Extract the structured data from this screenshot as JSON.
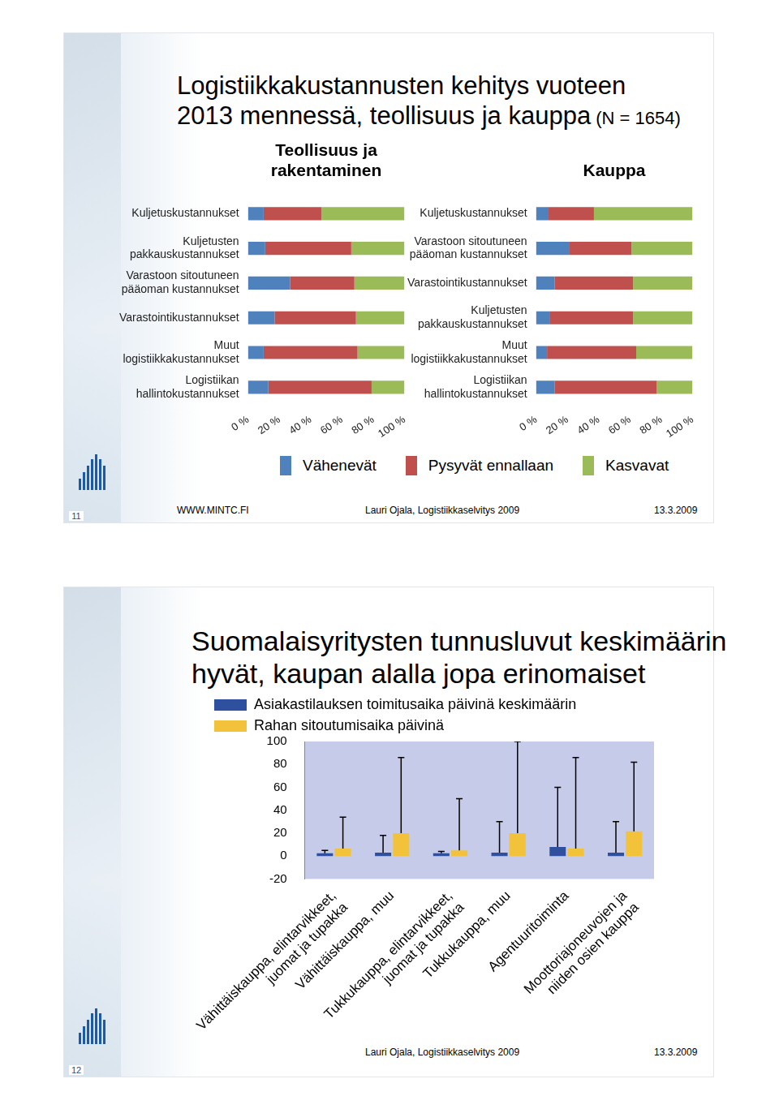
{
  "slides": [
    {
      "page": "11",
      "title_lines": [
        "Logistiikkakustannusten kehitys vuoteen",
        "2013 mennessä, teollisuus ja kauppa"
      ],
      "title_note": "(N = 1654)",
      "footer": {
        "left": "WWW.MINTC.FI",
        "center": "Lauri Ojala, Logistiikkaselvitys 2009",
        "right": "13.3.2009"
      }
    },
    {
      "page": "12",
      "title_lines": [
        "Suomalaisyritysten tunnusluvut keskimäärin",
        "hyvät, kaupan alalla jopa erinomaiset"
      ],
      "footer": {
        "center": "Lauri Ojala, Logistiikkaselvitys 2009",
        "right": "13.3.2009"
      }
    }
  ],
  "chart_data": [
    {
      "type": "bar",
      "title": [
        "Teollisuus ja",
        "rakentaminen"
      ],
      "orientation": "horizontal",
      "stacked": true,
      "grid": false,
      "categories": [
        [
          "Kuljetuskustannukset"
        ],
        [
          "Kuljetusten",
          "pakkauskustannukset"
        ],
        [
          "Varastoon sitoutuneen",
          "pääoman kustannukset"
        ],
        [
          "Varastointikustannukset"
        ],
        [
          "Muut",
          "logistiikkakustannukset"
        ],
        [
          "Logistiikan",
          "hallintokustannukset"
        ]
      ],
      "series": [
        {
          "name": "Vähenevät",
          "color": "#4f81bd",
          "values": [
            10,
            11,
            27,
            17,
            10,
            13
          ]
        },
        {
          "name": "Pysyvät ennallaan",
          "color": "#c0504d",
          "values": [
            37,
            55,
            41,
            52,
            60,
            66
          ]
        },
        {
          "name": "Kasvavat",
          "color": "#9bbb59",
          "values": [
            53,
            34,
            32,
            31,
            30,
            21
          ]
        }
      ],
      "xlim": [
        0,
        100
      ],
      "xticks": [
        {
          "value": 0,
          "label": "0 %"
        },
        {
          "value": 20,
          "label": "20 %"
        },
        {
          "value": 40,
          "label": "40 %"
        },
        {
          "value": 60,
          "label": "60 %"
        },
        {
          "value": 80,
          "label": "80 %"
        },
        {
          "value": 100,
          "label": "100 %"
        }
      ]
    },
    {
      "type": "bar",
      "title": [
        "Kauppa"
      ],
      "orientation": "horizontal",
      "stacked": true,
      "grid": false,
      "categories": [
        [
          "Kuljetuskustannukset"
        ],
        [
          "Varastoon sitoutuneen",
          "pääoman kustannukset"
        ],
        [
          "Varastointikustannukset"
        ],
        [
          "Kuljetusten",
          "pakkauskustannukset"
        ],
        [
          "Muut",
          "logistiikkakustannukset"
        ],
        [
          "Logistiikan",
          "hallintokustannukset"
        ]
      ],
      "series": [
        {
          "name": "Vähenevät",
          "color": "#4f81bd",
          "values": [
            8,
            21,
            12,
            9,
            7,
            12
          ]
        },
        {
          "name": "Pysyvät ennallaan",
          "color": "#c0504d",
          "values": [
            29,
            40,
            50,
            53,
            57,
            65
          ]
        },
        {
          "name": "Kasvavat",
          "color": "#9bbb59",
          "values": [
            63,
            39,
            38,
            38,
            36,
            23
          ]
        }
      ],
      "xlim": [
        0,
        100
      ],
      "xticks": [
        {
          "value": 0,
          "label": "0 %"
        },
        {
          "value": 20,
          "label": "20 %"
        },
        {
          "value": 40,
          "label": "40 %"
        },
        {
          "value": 60,
          "label": "60 %"
        },
        {
          "value": 80,
          "label": "80 %"
        },
        {
          "value": 100,
          "label": "100 %"
        }
      ]
    },
    {
      "type": "bar",
      "grid": false,
      "legend": "top",
      "categories": [
        [
          "Vähittäiskauppa, elintarvikkeet,",
          "juomat ja tupakka"
        ],
        [
          "Vähittäiskauppa, muu"
        ],
        [
          "Tukkukauppa, elintarvikkeet,",
          "juomat ja tupakka"
        ],
        [
          "Tukkukauppa, muu"
        ],
        [
          "Agentuuritoiminta"
        ],
        [
          "Moottoriajoneuvojen ja",
          "niiden osien kauppa"
        ]
      ],
      "series": [
        {
          "name": "Asiakastilauksen toimitusaika päivinä keskimäärin",
          "color": "#2f4f9f",
          "values": [
            2.5,
            3,
            2.5,
            3,
            8,
            3
          ],
          "error_plus": [
            2.5,
            15,
            1.5,
            27,
            52,
            27
          ]
        },
        {
          "name": "Rahan sitoutumisaika päivinä",
          "color": "#f2c23a",
          "values": [
            6.5,
            20,
            5,
            20,
            6.5,
            21.5
          ],
          "error_plus": [
            27.5,
            66,
            45,
            80,
            79.5,
            60.5
          ]
        }
      ],
      "ylim": [
        -20,
        100
      ],
      "yticks": [
        -20,
        0,
        20,
        40,
        60,
        80,
        100
      ]
    }
  ]
}
